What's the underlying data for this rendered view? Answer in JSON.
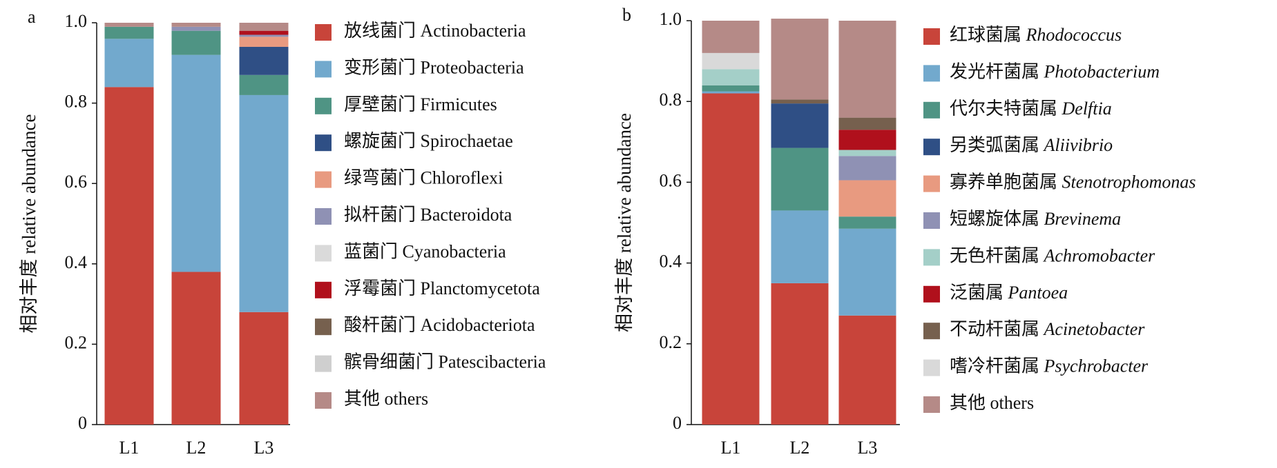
{
  "chart_data": [
    {
      "type": "stacked_bar",
      "panel": "a",
      "ylabel": "相对丰度 relative abundance",
      "categories": [
        "L1",
        "L2",
        "L3"
      ],
      "ylim": [
        0,
        1
      ],
      "yticks": [
        0,
        0.2,
        0.4,
        0.6,
        0.8,
        {
          "value": 1,
          "label": "1.0"
        }
      ],
      "series": [
        {
          "name": "放线菌门 Actinobacteria",
          "color": "#c8443a",
          "values": [
            0.84,
            0.38,
            0.28
          ]
        },
        {
          "name": "变形菌门 Proteobacteria",
          "color": "#72a9cd",
          "values": [
            0.12,
            0.54,
            0.54
          ]
        },
        {
          "name": "厚壁菌门 Firmicutes",
          "color": "#4f9484",
          "values": [
            0.03,
            0.06,
            0.05
          ]
        },
        {
          "name": "螺旋菌门 Spirochaetae",
          "color": "#2f4f85",
          "values": [
            0,
            0,
            0.07
          ]
        },
        {
          "name": "绿弯菌门 Chloroflexi",
          "color": "#e89a80",
          "values": [
            0,
            0,
            0.025
          ]
        },
        {
          "name": "拟杆菌门 Bacteroidota",
          "color": "#8f91b4",
          "values": [
            0,
            0.01,
            0.005
          ]
        },
        {
          "name": "蓝菌门 Cyanobacteria",
          "color": "#dadada",
          "values": [
            0,
            0,
            0
          ]
        },
        {
          "name": "浮霉菌门 Planctomycetota",
          "color": "#b0101c",
          "values": [
            0,
            0,
            0.01
          ]
        },
        {
          "name": "酸杆菌门 Acidobacteriota",
          "color": "#76604e",
          "values": [
            0,
            0,
            0
          ]
        },
        {
          "name": "髌骨细菌门 Patescibacteria",
          "color": "#cfcfcf",
          "values": [
            0,
            0,
            0
          ]
        },
        {
          "name": "其他 others",
          "color": "#b58a87",
          "values": [
            0.01,
            0.01,
            0.02
          ]
        }
      ]
    },
    {
      "type": "stacked_bar",
      "panel": "b",
      "ylabel": "相对丰度 relative abundance",
      "categories": [
        "L1",
        "L2",
        "L3"
      ],
      "ylim": [
        0,
        1
      ],
      "yticks": [
        0,
        0.2,
        0.4,
        0.6,
        0.8,
        {
          "value": 1,
          "label": "1.0"
        }
      ],
      "series": [
        {
          "name": "红球菌属 Rhodococcus",
          "color": "#c8443a",
          "values": [
            0.82,
            0.35,
            0.27
          ]
        },
        {
          "name": "发光杆菌属 Photobacterium",
          "color": "#72a9cd",
          "values": [
            0.005,
            0.18,
            0.215
          ]
        },
        {
          "name": "代尔夫特菌属 Delftia",
          "color": "#4f9484",
          "values": [
            0.015,
            0.155,
            0.03
          ]
        },
        {
          "name": "另类弧菌属 Aliivibrio",
          "color": "#2f4f85",
          "values": [
            0,
            0.11,
            0
          ]
        },
        {
          "name": "寡养单胞菌属 Stenotrophomonas",
          "color": "#e89a80",
          "values": [
            0,
            0,
            0.09
          ]
        },
        {
          "name": "短螺旋体属 Brevinema",
          "color": "#8f91b4",
          "values": [
            0,
            0,
            0.06
          ]
        },
        {
          "name": "无色杆菌属 Achromobacter",
          "color": "#a4cfc8",
          "values": [
            0.04,
            0,
            0.015
          ]
        },
        {
          "name": "泛菌属 Pantoea",
          "color": "#b0101c",
          "values": [
            0,
            0,
            0.05
          ]
        },
        {
          "name": "不动杆菌属 Acinetobacter",
          "color": "#76604e",
          "values": [
            0,
            0.01,
            0.03
          ]
        },
        {
          "name": "嗜冷杆菌属 Psychrobacter",
          "color": "#d9d9d9",
          "values": [
            0.04,
            0,
            0
          ]
        },
        {
          "name": "其他  others",
          "color": "#b58a87",
          "values": [
            0.08,
            0.2,
            0.24
          ]
        }
      ]
    }
  ]
}
